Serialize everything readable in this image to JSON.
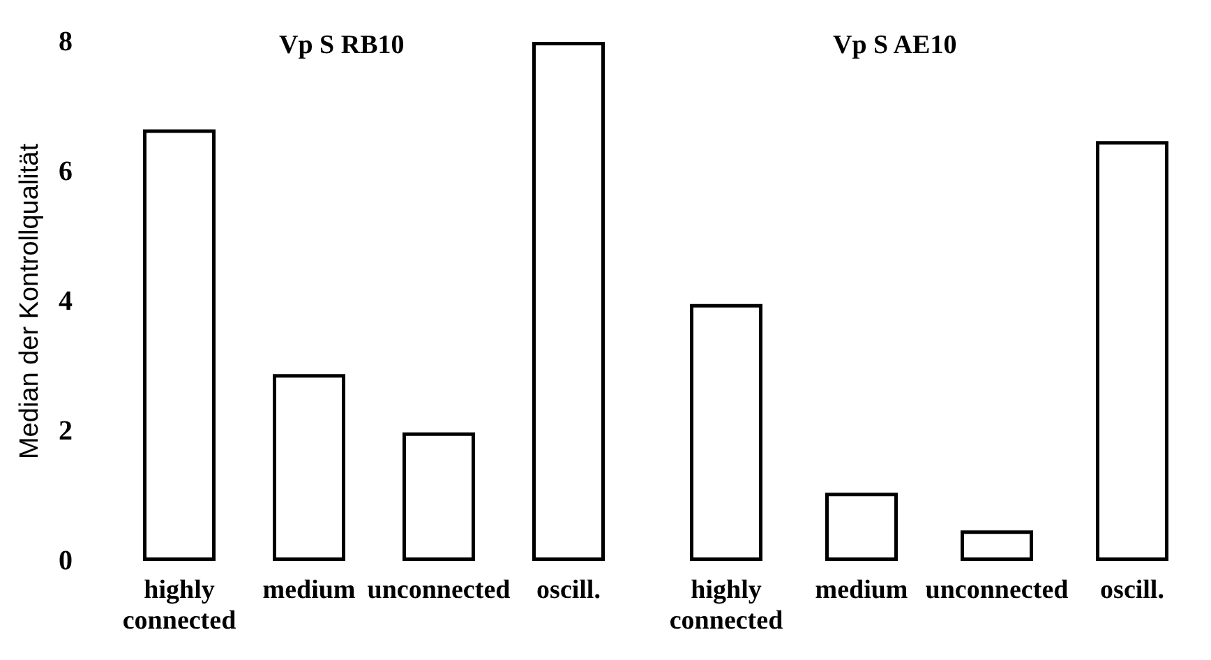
{
  "chart_data": [
    {
      "type": "bar",
      "title": "Vp S RB10",
      "ylabel": "Median der Kontrollqualität",
      "categories": [
        "highly connected",
        "medium",
        "unconnected",
        "oscill."
      ],
      "values": [
        6.65,
        2.88,
        1.98,
        8.0
      ],
      "color": "#ffffff",
      "ylim": [
        0,
        8
      ],
      "yticks": [
        0,
        2,
        4,
        6,
        8
      ],
      "grid": false
    },
    {
      "type": "bar",
      "title": "Vp S AE10",
      "categories": [
        "highly connected",
        "medium",
        "unconnected",
        "oscill."
      ],
      "values": [
        3.96,
        1.05,
        0.47,
        6.47
      ],
      "color": "#ffffff",
      "ylim": [
        0,
        8
      ],
      "yticks": [
        0,
        2,
        4,
        6,
        8
      ],
      "grid": false,
      "tick_labels": "x"
    }
  ]
}
